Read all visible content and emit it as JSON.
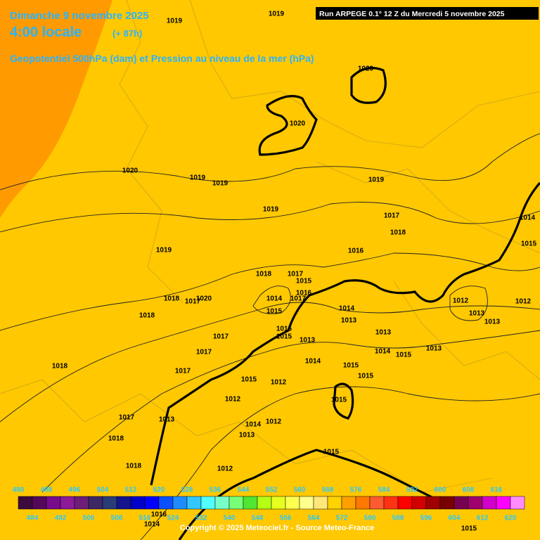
{
  "header": {
    "date": "Dimanche 9 novembre 2025",
    "time": "4:00 locale",
    "lead": "(+ 87h)",
    "field": "Geopotentiel 500hPa (dam) et Pression au niveau de la mer (hPa)",
    "run": "Run ARPEGE 0.1° 12 Z du Mercredi 5 novembre 2025"
  },
  "isobar_labels": [
    "1019",
    "1019",
    "1020",
    "1020",
    "1020",
    "1019",
    "1019",
    "1019",
    "1019",
    "1017",
    "1018",
    "1016",
    "1019",
    "1018",
    "1017",
    "1015",
    "1014",
    "1016",
    "1017",
    "1018",
    "1017",
    "1020",
    "1015",
    "1014",
    "1013",
    "1018",
    "1016",
    "1015",
    "1013",
    "1013",
    "1017",
    "1017",
    "1014",
    "1015",
    "1013",
    "1014",
    "1015",
    "1015",
    "1018",
    "1017",
    "1015",
    "1012",
    "1012",
    "1015",
    "1017",
    "1013",
    "1014",
    "1012",
    "1018",
    "1013",
    "1015",
    "1018",
    "1012",
    "1012",
    "1013",
    "1013",
    "1012",
    "1015",
    "1014",
    "1016",
    "1014",
    "1015"
  ],
  "legend": {
    "values": [
      480,
      484,
      488,
      492,
      496,
      500,
      504,
      508,
      512,
      516,
      520,
      524,
      528,
      532,
      536,
      540,
      544,
      548,
      552,
      556,
      560,
      564,
      568,
      572,
      576,
      580,
      584,
      588,
      592,
      596,
      600,
      604,
      608,
      612,
      616,
      620
    ],
    "colors": [
      "#3c0a3c",
      "#55085a",
      "#780a8c",
      "#8c1a9a",
      "#6e1e78",
      "#3c2864",
      "#283c78",
      "#14148c",
      "#0000c8",
      "#0000ff",
      "#0a50ff",
      "#1e8cff",
      "#32c8ff",
      "#50ffff",
      "#78ffc8",
      "#78ff78",
      "#50e632",
      "#b4ff14",
      "#e6ff1e",
      "#ffff50",
      "#ffff8c",
      "#ffe678",
      "#ffd200",
      "#ffa000",
      "#ff7800",
      "#ff5a32",
      "#ff3214",
      "#ff0000",
      "#d20000",
      "#a00000",
      "#780000",
      "#780050",
      "#a0006e",
      "#d200c8",
      "#ff00ff",
      "#ff8cff"
    ]
  },
  "copyright": "Copyright © 2025 Meteociel.fr - Source Meteo-France"
}
